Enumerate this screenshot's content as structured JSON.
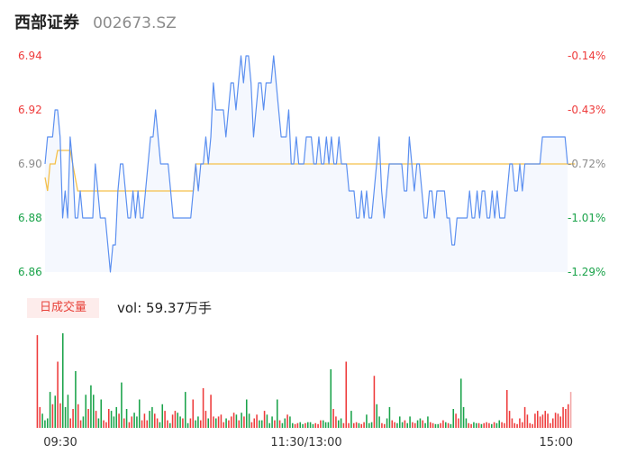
{
  "header": {
    "name": "西部证券",
    "code": "002673.SZ"
  },
  "volume_panel": {
    "badge_label": "日成交量",
    "volume_label": "vol: ",
    "volume_value": "59.37万手"
  },
  "colors": {
    "price_line": "#5b8ff0",
    "price_fill": "#f5f8fe",
    "avg_line": "#f5c04a",
    "up": "#ee3b3b",
    "down": "#1aa34a",
    "neutral": "#8c8c8c",
    "last_bar": "#f3a6a6"
  },
  "chart_data": [
    {
      "type": "line",
      "title": "",
      "xlabel": "",
      "ylabel": "",
      "ylim": [
        6.86,
        6.94
      ],
      "x_ticks": [
        "09:30",
        "11:30/13:00",
        "15:00"
      ],
      "y_ticks_left": [
        "6.94",
        "6.92",
        "6.90",
        "6.88",
        "6.86"
      ],
      "y_ticks_right": [
        "-0.14%",
        "-0.43%",
        "-0.72%",
        "-1.01%",
        "-1.29%"
      ],
      "y_tick_colors": [
        "up",
        "up",
        "neutral",
        "down",
        "down"
      ],
      "grid": false,
      "series": [
        {
          "role": "price",
          "values": [
            6.9,
            6.91,
            6.91,
            6.91,
            6.92,
            6.92,
            6.91,
            6.88,
            6.89,
            6.88,
            6.91,
            6.9,
            6.88,
            6.88,
            6.89,
            6.88,
            6.88,
            6.88,
            6.88,
            6.88,
            6.9,
            6.89,
            6.88,
            6.88,
            6.88,
            6.87,
            6.86,
            6.87,
            6.87,
            6.89,
            6.9,
            6.9,
            6.89,
            6.88,
            6.88,
            6.89,
            6.88,
            6.89,
            6.88,
            6.88,
            6.89,
            6.9,
            6.91,
            6.91,
            6.92,
            6.91,
            6.9,
            6.9,
            6.9,
            6.9,
            6.89,
            6.88,
            6.88,
            6.88,
            6.88,
            6.88,
            6.88,
            6.88,
            6.88,
            6.89,
            6.9,
            6.89,
            6.9,
            6.9,
            6.91,
            6.9,
            6.91,
            6.93,
            6.92,
            6.92,
            6.92,
            6.92,
            6.91,
            6.92,
            6.93,
            6.93,
            6.92,
            6.93,
            6.94,
            6.93,
            6.94,
            6.94,
            6.93,
            6.91,
            6.92,
            6.93,
            6.93,
            6.92,
            6.93,
            6.93,
            6.93,
            6.94,
            6.93,
            6.92,
            6.91,
            6.91,
            6.91,
            6.92,
            6.9,
            6.9,
            6.91,
            6.9,
            6.9,
            6.9,
            6.91,
            6.91,
            6.91,
            6.9,
            6.9,
            6.91,
            6.9,
            6.9,
            6.91,
            6.9,
            6.91,
            6.9,
            6.9,
            6.91,
            6.9,
            6.9,
            6.9,
            6.89,
            6.89,
            6.89,
            6.88,
            6.88,
            6.89,
            6.88,
            6.89,
            6.88,
            6.88,
            6.89,
            6.9,
            6.91,
            6.89,
            6.88,
            6.89,
            6.9,
            6.9,
            6.9,
            6.9,
            6.9,
            6.9,
            6.89,
            6.89,
            6.91,
            6.9,
            6.89,
            6.9,
            6.9,
            6.89,
            6.88,
            6.88,
            6.89,
            6.89,
            6.88,
            6.89,
            6.89,
            6.89,
            6.89,
            6.88,
            6.88,
            6.87,
            6.87,
            6.88,
            6.88,
            6.88,
            6.88,
            6.88,
            6.89,
            6.88,
            6.88,
            6.89,
            6.88,
            6.89,
            6.89,
            6.88,
            6.88,
            6.89,
            6.88,
            6.89,
            6.88,
            6.88,
            6.88,
            6.89,
            6.9,
            6.9,
            6.89,
            6.89,
            6.9,
            6.89,
            6.9,
            6.9,
            6.9,
            6.9,
            6.9,
            6.9,
            6.9,
            6.91,
            6.91,
            6.91,
            6.91,
            6.91,
            6.91,
            6.91,
            6.91,
            6.91,
            6.91,
            6.9
          ]
        },
        {
          "role": "average",
          "values": [
            6.895,
            6.89,
            6.9,
            6.9,
            6.9,
            6.905,
            6.905,
            6.905,
            6.905,
            6.905,
            6.905,
            6.9,
            6.895,
            6.89,
            6.89,
            6.89,
            6.89,
            6.89,
            6.89,
            6.89,
            6.89,
            6.89,
            6.89,
            6.89,
            6.89,
            6.89,
            6.89,
            6.89,
            6.89,
            6.89,
            6.89,
            6.89,
            6.89,
            6.89,
            6.89,
            6.89,
            6.89,
            6.89,
            6.89,
            6.89,
            6.89,
            6.89,
            6.89,
            6.89,
            6.89,
            6.89,
            6.89,
            6.89,
            6.89,
            6.89,
            6.89,
            6.89,
            6.89,
            6.89,
            6.89,
            6.89,
            6.89,
            6.89,
            6.89,
            6.89,
            6.9,
            6.9,
            6.9,
            6.9,
            6.9,
            6.9,
            6.9,
            6.9,
            6.9,
            6.9,
            6.9,
            6.9,
            6.9,
            6.9,
            6.9,
            6.9,
            6.9,
            6.9,
            6.9,
            6.9,
            6.9,
            6.9,
            6.9,
            6.9,
            6.9,
            6.9,
            6.9,
            6.9,
            6.9,
            6.9,
            6.9,
            6.9,
            6.9,
            6.9,
            6.9,
            6.9,
            6.9,
            6.9,
            6.9,
            6.9,
            6.9,
            6.9,
            6.9,
            6.9,
            6.9,
            6.9,
            6.9,
            6.9,
            6.9,
            6.9,
            6.9,
            6.9,
            6.9,
            6.9,
            6.9,
            6.9,
            6.9,
            6.9,
            6.9,
            6.9,
            6.9,
            6.9,
            6.9,
            6.9,
            6.9,
            6.9,
            6.9,
            6.9,
            6.9,
            6.9,
            6.9,
            6.9,
            6.9,
            6.9,
            6.9,
            6.9,
            6.9,
            6.9,
            6.9,
            6.9,
            6.9,
            6.9,
            6.9,
            6.9,
            6.9,
            6.9,
            6.9,
            6.9,
            6.9,
            6.9,
            6.9,
            6.9,
            6.9,
            6.9,
            6.9,
            6.9,
            6.9,
            6.9,
            6.9,
            6.9,
            6.9,
            6.9,
            6.9,
            6.9,
            6.9,
            6.9,
            6.9,
            6.9,
            6.9,
            6.9,
            6.9,
            6.9,
            6.9,
            6.9,
            6.9,
            6.9,
            6.9,
            6.9,
            6.9,
            6.9,
            6.9,
            6.9,
            6.9,
            6.9,
            6.9,
            6.9,
            6.9,
            6.9,
            6.9,
            6.9,
            6.9,
            6.9,
            6.9,
            6.9,
            6.9,
            6.9,
            6.9,
            6.9,
            6.9,
            6.9,
            6.9,
            6.9,
            6.9,
            6.9,
            6.9,
            6.9,
            6.9,
            6.9,
            6.9,
            6.9,
            6.9,
            6.9
          ]
        }
      ]
    },
    {
      "type": "bar",
      "title": "",
      "xlabel": "",
      "ylabel": "",
      "ylim": [
        0,
        1
      ],
      "x_ticks": [
        "09:30",
        "11:30/13:00",
        "15:00"
      ],
      "grid": false,
      "series": [
        {
          "role": "volume",
          "values": [
            0.98,
            0.22,
            0.15,
            0.08,
            0.1,
            0.38,
            0.25,
            0.34,
            0.7,
            0.26,
            1.0,
            0.22,
            0.35,
            0.1,
            0.2,
            0.6,
            0.25,
            0.08,
            0.12,
            0.35,
            0.2,
            0.45,
            0.35,
            0.18,
            0.1,
            0.3,
            0.08,
            0.06,
            0.2,
            0.18,
            0.12,
            0.22,
            0.15,
            0.48,
            0.1,
            0.2,
            0.06,
            0.12,
            0.16,
            0.12,
            0.3,
            0.08,
            0.15,
            0.08,
            0.18,
            0.22,
            0.15,
            0.1,
            0.06,
            0.25,
            0.18,
            0.08,
            0.05,
            0.14,
            0.18,
            0.16,
            0.12,
            0.1,
            0.38,
            0.05,
            0.1,
            0.3,
            0.08,
            0.12,
            0.08,
            0.42,
            0.18,
            0.1,
            0.35,
            0.12,
            0.1,
            0.12,
            0.14,
            0.06,
            0.1,
            0.08,
            0.12,
            0.16,
            0.14,
            0.08,
            0.16,
            0.12,
            0.3,
            0.15,
            0.06,
            0.1,
            0.14,
            0.08,
            0.08,
            0.18,
            0.14,
            0.05,
            0.12,
            0.08,
            0.3,
            0.08,
            0.05,
            0.1,
            0.14,
            0.12,
            0.05,
            0.04,
            0.05,
            0.06,
            0.04,
            0.05,
            0.06,
            0.06,
            0.04,
            0.05,
            0.04,
            0.08,
            0.08,
            0.06,
            0.06,
            0.62,
            0.2,
            0.12,
            0.08,
            0.1,
            0.05,
            0.7,
            0.05,
            0.18,
            0.05,
            0.06,
            0.05,
            0.04,
            0.06,
            0.14,
            0.05,
            0.06,
            0.55,
            0.25,
            0.12,
            0.05,
            0.04,
            0.1,
            0.22,
            0.08,
            0.06,
            0.05,
            0.12,
            0.06,
            0.08,
            0.05,
            0.12,
            0.06,
            0.05,
            0.08,
            0.1,
            0.08,
            0.05,
            0.12,
            0.06,
            0.05,
            0.04,
            0.04,
            0.05,
            0.08,
            0.06,
            0.05,
            0.04,
            0.2,
            0.15,
            0.1,
            0.52,
            0.22,
            0.1,
            0.05,
            0.04,
            0.06,
            0.05,
            0.05,
            0.04,
            0.05,
            0.06,
            0.05,
            0.04,
            0.06,
            0.05,
            0.08,
            0.06,
            0.05,
            0.4,
            0.18,
            0.1,
            0.05,
            0.04,
            0.1,
            0.06,
            0.22,
            0.14,
            0.05,
            0.04,
            0.15,
            0.18,
            0.12,
            0.14,
            0.18,
            0.15,
            0.05,
            0.1,
            0.16,
            0.15,
            0.12,
            0.22,
            0.2,
            0.25,
            0.38
          ],
          "directions": "uudddduduuddduuduudduddudduuudddududuuddduuudduudduuduuddudduudduuuduuduuuduuudududduuuddudddududdudduudduddduuudddduudduuuduuduudddudduudduudddudduuddudduudduududduuddduudduduuududduuuuuuuuuuuuuuuuuuuuuuuuuuuuuuuuuuuuuuuuuuuuuuuuuuu"
        }
      ]
    }
  ]
}
